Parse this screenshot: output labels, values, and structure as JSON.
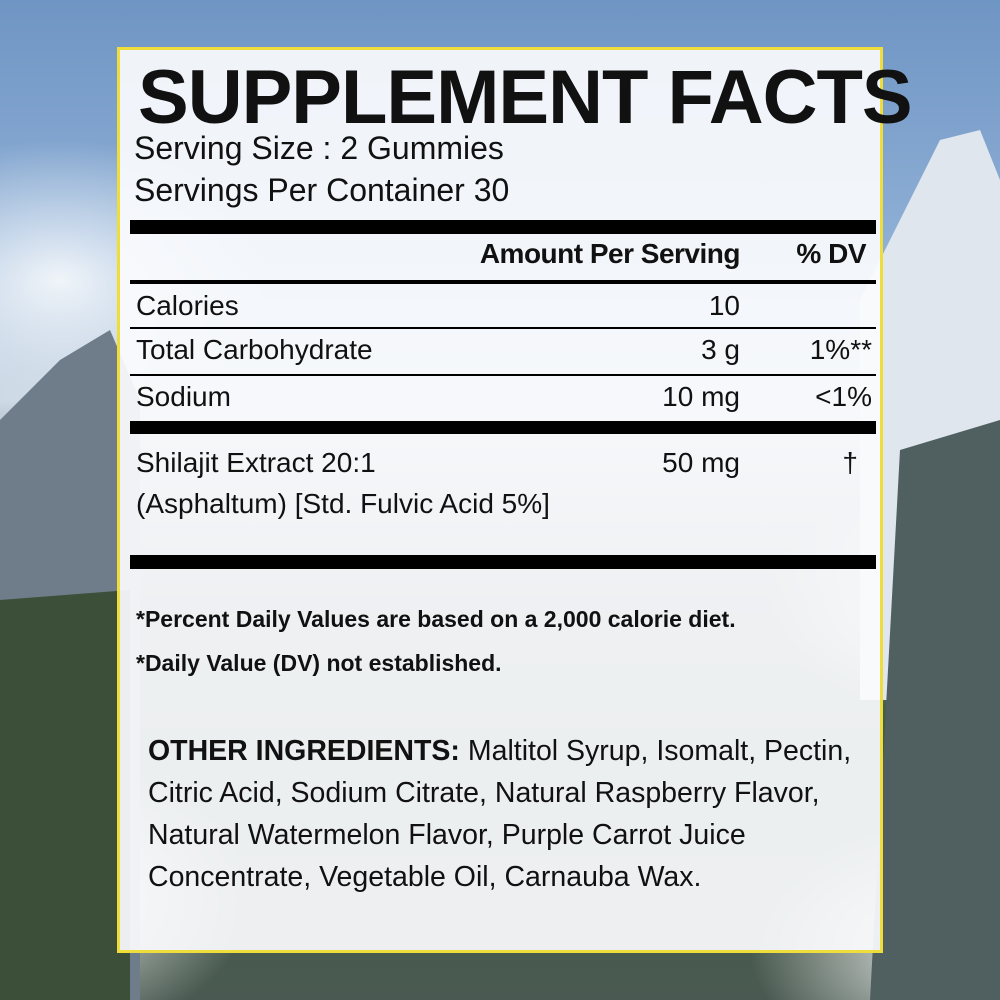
{
  "colors": {
    "border": "#eedd3a",
    "text": "#111111",
    "bars": "#000000"
  },
  "title": "SUPPLEMENT FACTS",
  "serving_size": "Serving Size : 2 Gummies",
  "servings_per_container": "Servings Per Container 30",
  "header": {
    "amount": "Amount Per Serving",
    "dv": "% DV"
  },
  "rows": [
    {
      "name": "Calories",
      "amount": "10",
      "dv": ""
    },
    {
      "name": "Total Carbohydrate",
      "amount": "3 g",
      "dv": "1%**"
    },
    {
      "name": "Sodium",
      "amount": "10 mg",
      "dv": "<1%"
    }
  ],
  "extract": {
    "line1": "Shilajit Extract 20:1",
    "line2": "(Asphaltum) [Std. Fulvic Acid 5%]",
    "amount": "50 mg",
    "dv": "†"
  },
  "footnotes": [
    "*Percent Daily Values are based on a 2,000 calorie diet.",
    "*Daily Value (DV) not established."
  ],
  "other_ingredients": {
    "label": "OTHER INGREDIENTS:",
    "text": " Maltitol Syrup, Isomalt, Pectin, Citric Acid, Sodium Citrate, Natural Raspberry Flavor, Natural Watermelon Flavor, Purple Carrot Juice Concentrate, Vegetable Oil, Carnauba Wax."
  }
}
